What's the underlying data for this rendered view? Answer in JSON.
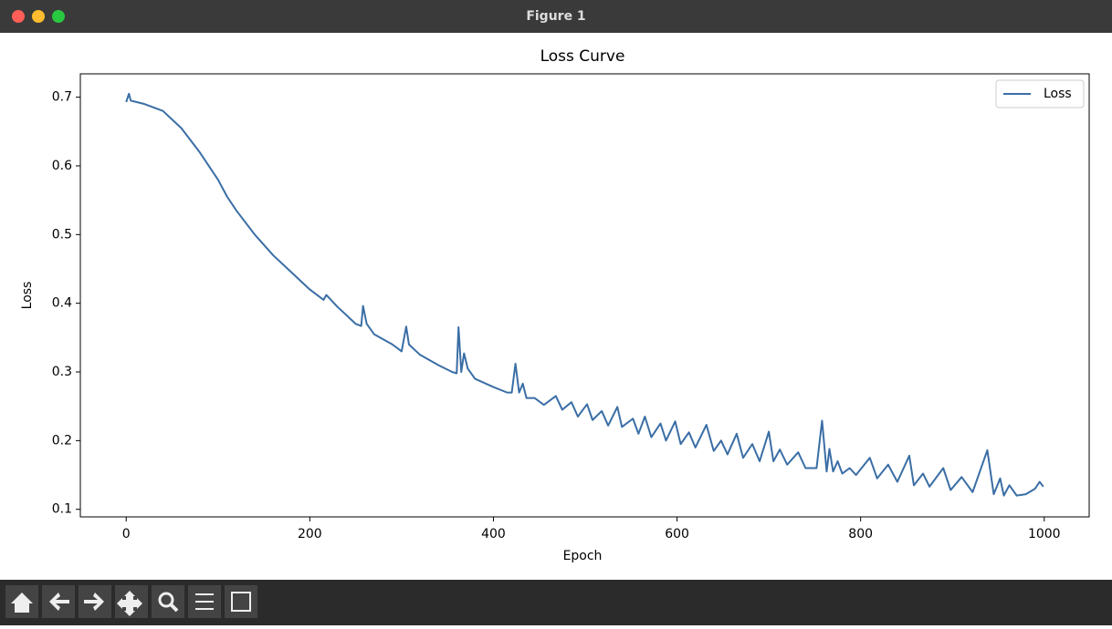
{
  "window": {
    "title": "Figure 1"
  },
  "chart_data": {
    "type": "line",
    "title": "Loss Curve",
    "x_label": "Epoch",
    "y_label": "Loss",
    "x": [
      0,
      3,
      5,
      20,
      40,
      60,
      80,
      100,
      110,
      120,
      140,
      160,
      180,
      200,
      215,
      218,
      230,
      250,
      256,
      258,
      262,
      270,
      290,
      300,
      305,
      308,
      320,
      340,
      355,
      360,
      362,
      365,
      368,
      372,
      380,
      400,
      415,
      420,
      424,
      428,
      432,
      436,
      445,
      455,
      468,
      475,
      485,
      492,
      502,
      508,
      518,
      525,
      535,
      540,
      552,
      558,
      565,
      572,
      582,
      588,
      598,
      604,
      613,
      620,
      632,
      640,
      648,
      655,
      665,
      672,
      682,
      690,
      700,
      705,
      712,
      720,
      732,
      740,
      752,
      758,
      763,
      766,
      770,
      775,
      780,
      788,
      795,
      810,
      818,
      830,
      840,
      853,
      858,
      868,
      875,
      890,
      898,
      910,
      922,
      938,
      945,
      952,
      956,
      962,
      970,
      980,
      990,
      995,
      999
    ],
    "series": [
      {
        "name": "Loss",
        "color": "#3a6ea5",
        "values": [
          0.693,
          0.705,
          0.695,
          0.69,
          0.68,
          0.655,
          0.62,
          0.58,
          0.555,
          0.535,
          0.5,
          0.47,
          0.445,
          0.42,
          0.405,
          0.412,
          0.395,
          0.37,
          0.367,
          0.396,
          0.37,
          0.355,
          0.34,
          0.33,
          0.366,
          0.34,
          0.325,
          0.31,
          0.3,
          0.298,
          0.365,
          0.3,
          0.327,
          0.305,
          0.29,
          0.278,
          0.27,
          0.27,
          0.312,
          0.27,
          0.283,
          0.262,
          0.262,
          0.252,
          0.265,
          0.245,
          0.256,
          0.235,
          0.253,
          0.23,
          0.243,
          0.222,
          0.249,
          0.22,
          0.232,
          0.21,
          0.235,
          0.205,
          0.225,
          0.2,
          0.228,
          0.195,
          0.212,
          0.19,
          0.223,
          0.185,
          0.2,
          0.18,
          0.21,
          0.175,
          0.195,
          0.17,
          0.213,
          0.17,
          0.187,
          0.165,
          0.183,
          0.16,
          0.16,
          0.229,
          0.155,
          0.188,
          0.155,
          0.17,
          0.152,
          0.16,
          0.15,
          0.175,
          0.145,
          0.165,
          0.14,
          0.178,
          0.135,
          0.152,
          0.133,
          0.16,
          0.128,
          0.147,
          0.125,
          0.186,
          0.122,
          0.145,
          0.12,
          0.135,
          0.12,
          0.122,
          0.13,
          0.14,
          0.133
        ]
      }
    ],
    "xlim": [
      -49.95,
      1048.95
    ],
    "xticks": [
      0,
      200,
      400,
      600,
      800,
      1000
    ],
    "ylim": [
      0.089,
      0.734
    ],
    "yticks": [
      0.1,
      0.2,
      0.3,
      0.4,
      0.5,
      0.6,
      0.7
    ],
    "legend": "upper right"
  }
}
